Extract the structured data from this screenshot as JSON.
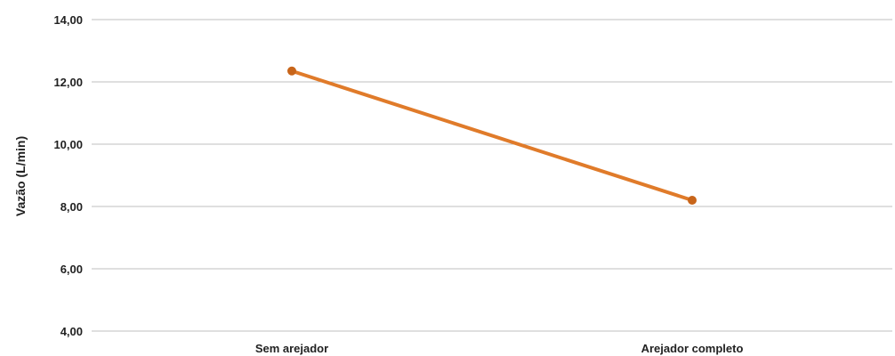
{
  "chart_data": {
    "type": "line",
    "title": "",
    "xlabel": "",
    "ylabel": "Vazão (L/min)",
    "categories": [
      "Sem arejador",
      "Arejador completo"
    ],
    "series": [
      {
        "values": [
          12.35,
          8.2
        ]
      }
    ],
    "ylim": [
      4,
      14
    ],
    "yticks": [
      4,
      6,
      8,
      10,
      12,
      14
    ],
    "ytick_labels": [
      "4,00",
      "6,00",
      "8,00",
      "10,00",
      "12,00",
      "14,00"
    ],
    "grid": true,
    "legend": "none",
    "colors": {
      "series": "#e07b2a",
      "marker": "#c8651a",
      "grid": "#bfbfbf"
    }
  }
}
